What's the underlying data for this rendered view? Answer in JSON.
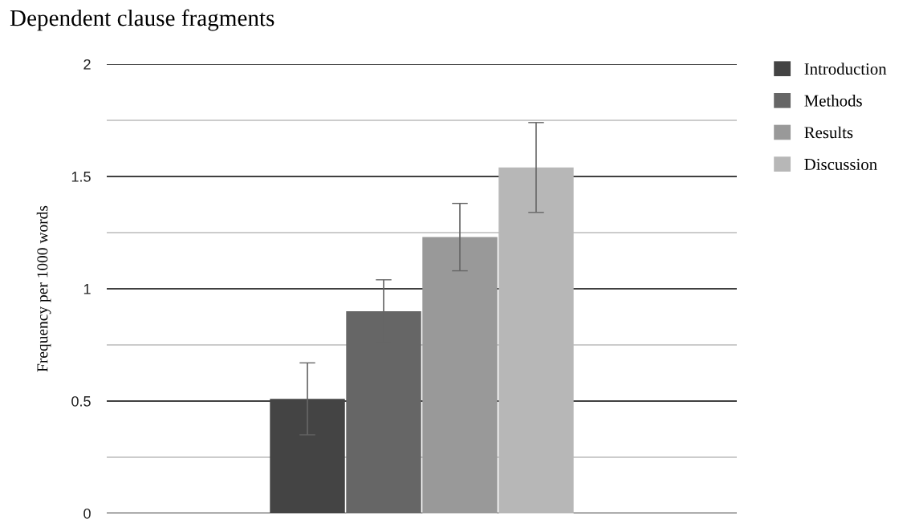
{
  "chart_data": {
    "type": "bar",
    "title": "Dependent clause fragments",
    "ylabel": "Frequency per 1000 words",
    "categories": [
      null
    ],
    "series": [
      {
        "name": "Introduction",
        "color": "#444444",
        "values": [
          0.51
        ],
        "errors": [
          0.16
        ]
      },
      {
        "name": "Methods",
        "color": "#666666",
        "values": [
          0.9
        ],
        "errors": [
          0.14
        ]
      },
      {
        "name": "Results",
        "color": "#999999",
        "values": [
          1.23
        ],
        "errors": [
          0.15
        ]
      },
      {
        "name": "Discussion",
        "color": "#b7b7b7",
        "values": [
          1.54
        ],
        "errors": [
          0.2
        ]
      }
    ],
    "ylim": [
      0,
      2
    ],
    "yticks": [
      0,
      {
        "value": 0.25,
        "label": null
      },
      0.5,
      {
        "value": 0.75,
        "label": null
      },
      1,
      {
        "value": 1.25,
        "label": null
      },
      1.5,
      {
        "value": 1.75,
        "label": null
      },
      2
    ],
    "grid": "y",
    "legend": "top right"
  }
}
